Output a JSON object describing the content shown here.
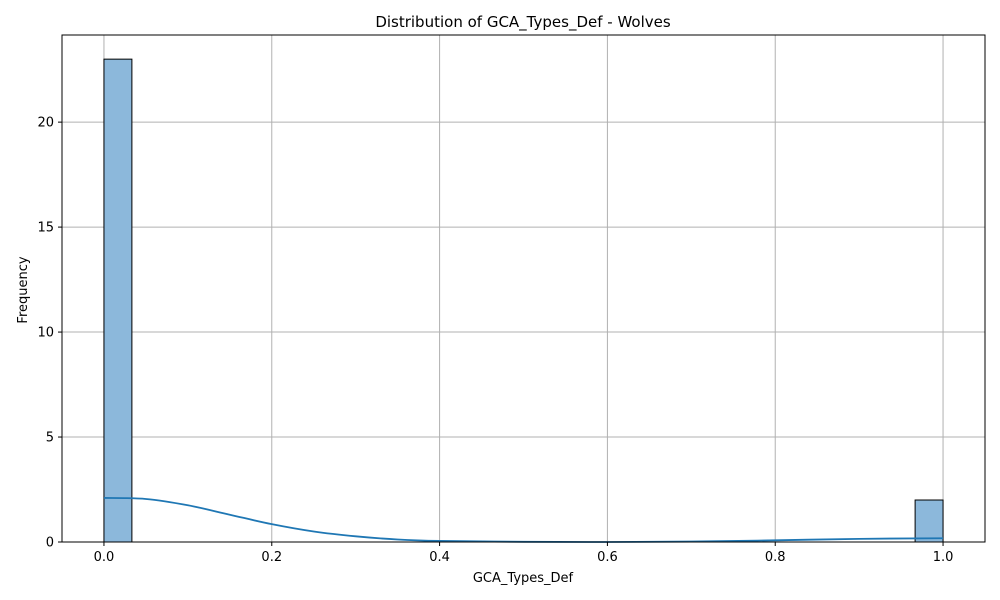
{
  "chart_data": {
    "type": "bar",
    "title": "Distribution of GCA_Types_Def - Wolves",
    "xlabel": "GCA_Types_Def",
    "ylabel": "Frequency",
    "xlim": [
      -0.05,
      1.05
    ],
    "ylim": [
      0,
      24.15
    ],
    "xticks": [
      0.0,
      0.2,
      0.4,
      0.6,
      0.8,
      1.0
    ],
    "xtick_labels": [
      "0.0",
      "0.2",
      "0.4",
      "0.6",
      "0.8",
      "1.0"
    ],
    "yticks": [
      0,
      5,
      10,
      15,
      20
    ],
    "ytick_labels": [
      "0",
      "5",
      "10",
      "15",
      "20"
    ],
    "grid": true,
    "bins": [
      {
        "x0": 0.0,
        "x1": 0.0333,
        "count": 23
      },
      {
        "x0": 0.9667,
        "x1": 1.0,
        "count": 2
      }
    ],
    "kde": {
      "x": [
        0.0,
        0.05,
        0.1,
        0.15,
        0.2,
        0.25,
        0.3,
        0.35,
        0.4,
        0.5,
        0.6,
        0.7,
        0.8,
        0.9,
        1.0
      ],
      "y": [
        2.1,
        2.05,
        1.75,
        1.3,
        0.85,
        0.5,
        0.27,
        0.12,
        0.05,
        0.01,
        0.0,
        0.02,
        0.08,
        0.15,
        0.18
      ]
    },
    "colors": {
      "bar_fill": "#8cb8db",
      "bar_edge": "#000000",
      "kde_line": "#1f77b4",
      "grid": "#b0b0b0"
    }
  }
}
